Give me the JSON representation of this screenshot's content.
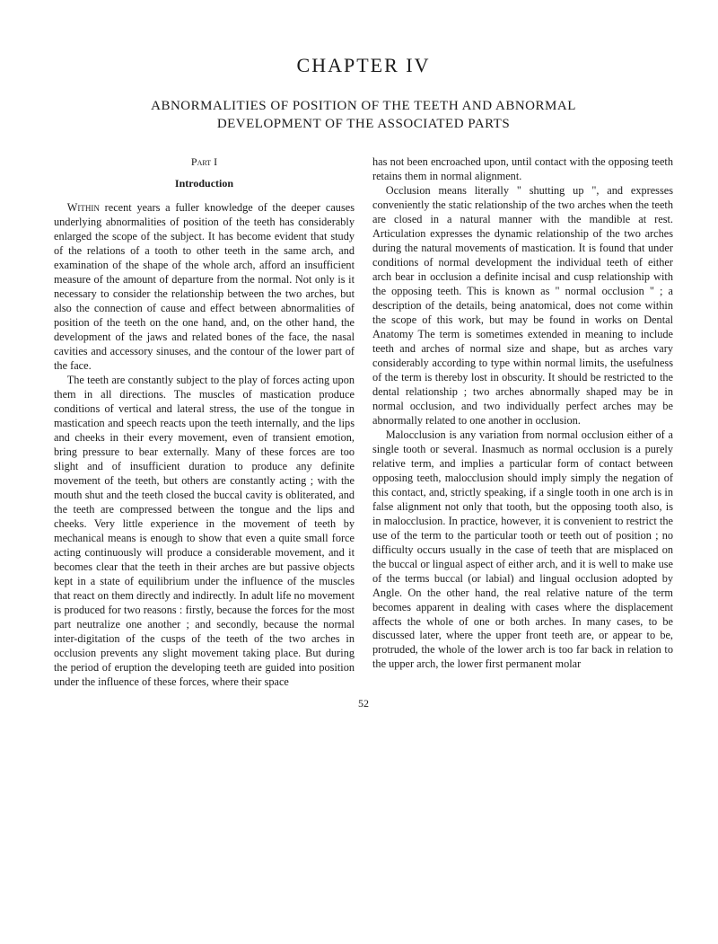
{
  "chapter_title": "CHAPTER IV",
  "main_title": "ABNORMALITIES OF POSITION OF THE TEETH AND ABNORMAL",
  "sub_title": "DEVELOPMENT OF THE ASSOCIATED PARTS",
  "part_label": "Part I",
  "intro_label": "Introduction",
  "left_column": {
    "para1_lead": "Within",
    "para1_rest": " recent years a fuller knowledge of the deeper causes underlying abnormalities of position of the teeth has considerably enlarged the scope of the subject. It has become evident that study of the relations of a tooth to other teeth in the same arch, and examination of the shape of the whole arch, afford an insufficient measure of the amount of departure from the normal. Not only is it necessary to consider the relationship between the two arches, but also the connection of cause and effect between abnormalities of position of the teeth on the one hand, and, on the other hand, the development of the jaws and related bones of the face, the nasal cavities and accessory sinuses, and the contour of the lower part of the face.",
    "para2": "The teeth are constantly subject to the play of forces acting upon them in all directions. The muscles of mastication produce conditions of vertical and lateral stress, the use of the tongue in mastication and speech reacts upon the teeth internally, and the lips and cheeks in their every movement, even of transient emotion, bring pressure to bear externally. Many of these forces are too slight and of insufficient duration to produce any definite movement of the teeth, but others are constantly acting ; with the mouth shut and the teeth closed the buccal cavity is obliterated, and the teeth are compressed between the tongue and the lips and cheeks. Very little experience in the movement of teeth by mechanical means is enough to show that even a quite small force acting continuously will produce a considerable movement, and it becomes clear that the teeth in their arches are but passive objects kept in a state of equilibrium under the influence of the muscles that react on them directly and indirectly. In adult life no movement is produced for two reasons : firstly, because the forces for the most part neutralize one another ; and secondly, because the normal inter-digitation of the cusps of the teeth of the two arches in occlusion prevents any slight movement taking place. But during the period of eruption the developing teeth are guided into position under the influence of these forces, where their space"
  },
  "right_column": {
    "para1": "has not been encroached upon, until contact with the opposing teeth retains them in normal alignment.",
    "para2": "Occlusion means literally \" shutting up \", and expresses conveniently the static relationship of the two arches when the teeth are closed in a natural manner with the mandible at rest. Articulation expresses the dynamic relationship of the two arches during the natural movements of mastication. It is found that under conditions of normal development the individual teeth of either arch bear in occlusion a definite incisal and cusp relationship with the opposing teeth. This is known as \" normal occlusion \" ; a description of the details, being anatomical, does not come within the scope of this work, but may be found in works on Dental Anatomy The term is sometimes extended in meaning to include teeth and arches of normal size and shape, but as arches vary considerably according to type within normal limits, the usefulness of the term is thereby lost in obscurity. It should be restricted to the dental relationship ; two arches abnormally shaped may be in normal occlusion, and two individually perfect arches may be abnormally related to one another in occlusion.",
    "para3": "Malocclusion is any variation from normal occlusion either of a single tooth or several. Inasmuch as normal occlusion is a purely relative term, and implies a particular form of contact between opposing teeth, malocclusion should imply simply the negation of this contact, and, strictly speaking, if a single tooth in one arch is in false alignment not only that tooth, but the opposing tooth also, is in malocclusion. In practice, however, it is convenient to restrict the use of the term to the particular tooth or teeth out of position ; no difficulty occurs usually in the case of teeth that are misplaced on the buccal or lingual aspect of either arch, and it is well to make use of the terms buccal (or labial) and lingual occlusion adopted by Angle. On the other hand, the real relative nature of the term becomes apparent in dealing with cases where the displacement affects the whole of one or both arches. In many cases, to be discussed later, where the upper front teeth are, or appear to be, protruded, the whole of the lower arch is too far back in relation to the upper arch, the lower first permanent molar"
  },
  "page_number": "52"
}
